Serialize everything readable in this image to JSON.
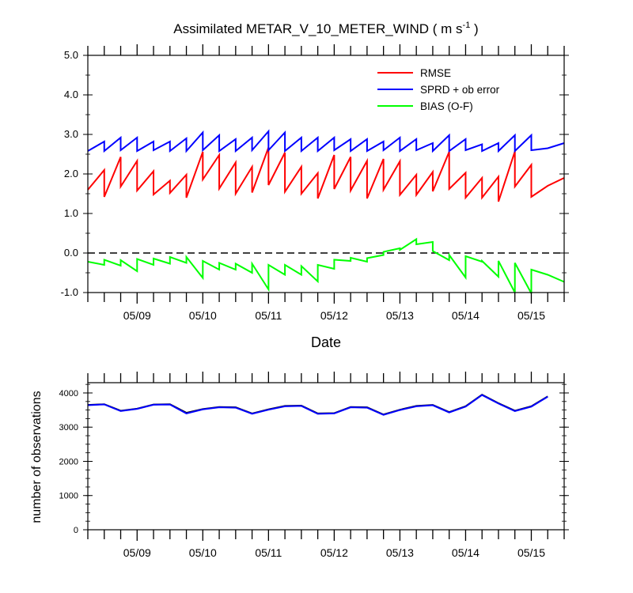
{
  "chart_data": [
    {
      "type": "line",
      "title": "Assimilated METAR_V_10_METER_WIND ( m s",
      "title_sup": "-1",
      "title_end": " )",
      "xlabel": "Date",
      "ylabel": "",
      "xlim": [
        0,
        7.25
      ],
      "ylim": [
        -1.0,
        5.0
      ],
      "yticks": [
        "-1.0",
        "0.0",
        "1.0",
        "2.0",
        "3.0",
        "4.0",
        "5.0"
      ],
      "ytick_values": [
        -1,
        0,
        1,
        2,
        3,
        4,
        5
      ],
      "x_tick_labels": [
        "05/09",
        "05/10",
        "05/11",
        "05/12",
        "05/13",
        "05/14",
        "05/15"
      ],
      "x_tick_values": [
        0.75,
        1.75,
        2.75,
        3.75,
        4.75,
        5.75,
        6.75
      ],
      "grid": false,
      "legend_position": "top-right",
      "reference_line": {
        "y": 0,
        "style": "dashed"
      },
      "series": [
        {
          "name": "RMSE",
          "color": "#ff0000",
          "points": [
            [
              0,
              1.6
            ],
            [
              0.25,
              2.1
            ],
            [
              0.25,
              1.42
            ],
            [
              0.5,
              2.43
            ],
            [
              0.5,
              1.68
            ],
            [
              0.75,
              2.33
            ],
            [
              0.75,
              1.58
            ],
            [
              1.0,
              2.07
            ],
            [
              1.0,
              1.48
            ],
            [
              1.25,
              1.83
            ],
            [
              1.25,
              1.52
            ],
            [
              1.5,
              1.98
            ],
            [
              1.5,
              1.4
            ],
            [
              1.75,
              2.56
            ],
            [
              1.75,
              1.86
            ],
            [
              2.0,
              2.48
            ],
            [
              2.0,
              1.63
            ],
            [
              2.25,
              2.29
            ],
            [
              2.25,
              1.5
            ],
            [
              2.5,
              2.18
            ],
            [
              2.5,
              1.53
            ],
            [
              2.75,
              2.67
            ],
            [
              2.75,
              1.72
            ],
            [
              3.0,
              2.54
            ],
            [
              3.0,
              1.55
            ],
            [
              3.25,
              2.18
            ],
            [
              3.25,
              1.5
            ],
            [
              3.5,
              2.02
            ],
            [
              3.5,
              1.38
            ],
            [
              3.75,
              2.48
            ],
            [
              3.75,
              1.62
            ],
            [
              4.0,
              2.43
            ],
            [
              4.0,
              1.58
            ],
            [
              4.25,
              2.33
            ],
            [
              4.25,
              1.38
            ],
            [
              4.5,
              2.38
            ],
            [
              4.5,
              1.6
            ],
            [
              4.75,
              2.32
            ],
            [
              4.75,
              1.47
            ],
            [
              5.0,
              1.98
            ],
            [
              5.0,
              1.47
            ],
            [
              5.25,
              2.05
            ],
            [
              5.25,
              1.56
            ],
            [
              5.5,
              2.56
            ],
            [
              5.5,
              1.62
            ],
            [
              5.75,
              2.03
            ],
            [
              5.75,
              1.4
            ],
            [
              6.0,
              1.9
            ],
            [
              6.0,
              1.4
            ],
            [
              6.25,
              1.93
            ],
            [
              6.25,
              1.3
            ],
            [
              6.5,
              2.57
            ],
            [
              6.5,
              1.68
            ],
            [
              6.75,
              2.23
            ],
            [
              6.75,
              1.42
            ],
            [
              7.0,
              1.7
            ],
            [
              7.25,
              1.9
            ]
          ]
        },
        {
          "name": "SPRD + ob error",
          "color": "#0000ff",
          "points": [
            [
              0,
              2.58
            ],
            [
              0.25,
              2.82
            ],
            [
              0.25,
              2.58
            ],
            [
              0.5,
              2.92
            ],
            [
              0.5,
              2.6
            ],
            [
              0.75,
              2.92
            ],
            [
              0.75,
              2.58
            ],
            [
              1.0,
              2.82
            ],
            [
              1.0,
              2.6
            ],
            [
              1.25,
              2.82
            ],
            [
              1.25,
              2.58
            ],
            [
              1.5,
              2.9
            ],
            [
              1.5,
              2.58
            ],
            [
              1.75,
              3.05
            ],
            [
              1.75,
              2.6
            ],
            [
              2.0,
              2.98
            ],
            [
              2.0,
              2.58
            ],
            [
              2.25,
              2.88
            ],
            [
              2.25,
              2.58
            ],
            [
              2.5,
              2.92
            ],
            [
              2.5,
              2.6
            ],
            [
              2.75,
              3.08
            ],
            [
              2.75,
              2.6
            ],
            [
              3.0,
              3.05
            ],
            [
              3.0,
              2.58
            ],
            [
              3.25,
              2.92
            ],
            [
              3.25,
              2.58
            ],
            [
              3.5,
              2.92
            ],
            [
              3.5,
              2.58
            ],
            [
              3.75,
              2.92
            ],
            [
              3.75,
              2.6
            ],
            [
              4.0,
              2.88
            ],
            [
              4.0,
              2.58
            ],
            [
              4.25,
              2.88
            ],
            [
              4.25,
              2.58
            ],
            [
              4.5,
              2.82
            ],
            [
              4.5,
              2.6
            ],
            [
              4.75,
              2.92
            ],
            [
              4.75,
              2.58
            ],
            [
              5.0,
              2.88
            ],
            [
              5.0,
              2.6
            ],
            [
              5.25,
              2.78
            ],
            [
              5.25,
              2.58
            ],
            [
              5.5,
              2.98
            ],
            [
              5.5,
              2.58
            ],
            [
              5.75,
              2.88
            ],
            [
              5.75,
              2.6
            ],
            [
              6.0,
              2.75
            ],
            [
              6.0,
              2.58
            ],
            [
              6.25,
              2.78
            ],
            [
              6.25,
              2.58
            ],
            [
              6.5,
              2.98
            ],
            [
              6.5,
              2.58
            ],
            [
              6.75,
              2.98
            ],
            [
              6.75,
              2.6
            ],
            [
              7.0,
              2.65
            ],
            [
              7.25,
              2.78
            ]
          ]
        },
        {
          "name": "BIAS (O-F)",
          "color": "#00ff00",
          "points": [
            [
              0,
              -0.22
            ],
            [
              0.25,
              -0.3
            ],
            [
              0.25,
              -0.17
            ],
            [
              0.5,
              -0.32
            ],
            [
              0.5,
              -0.18
            ],
            [
              0.75,
              -0.46
            ],
            [
              0.75,
              -0.15
            ],
            [
              1.0,
              -0.3
            ],
            [
              1.0,
              -0.14
            ],
            [
              1.25,
              -0.27
            ],
            [
              1.25,
              -0.1
            ],
            [
              1.5,
              -0.25
            ],
            [
              1.5,
              -0.1
            ],
            [
              1.75,
              -0.63
            ],
            [
              1.75,
              -0.2
            ],
            [
              2.0,
              -0.42
            ],
            [
              2.0,
              -0.25
            ],
            [
              2.25,
              -0.42
            ],
            [
              2.25,
              -0.27
            ],
            [
              2.5,
              -0.5
            ],
            [
              2.5,
              -0.27
            ],
            [
              2.75,
              -0.92
            ],
            [
              2.75,
              -0.3
            ],
            [
              3.0,
              -0.55
            ],
            [
              3.0,
              -0.3
            ],
            [
              3.25,
              -0.55
            ],
            [
              3.25,
              -0.33
            ],
            [
              3.5,
              -0.72
            ],
            [
              3.5,
              -0.3
            ],
            [
              3.75,
              -0.4
            ],
            [
              3.75,
              -0.17
            ],
            [
              4.0,
              -0.2
            ],
            [
              4.0,
              -0.12
            ],
            [
              4.25,
              -0.22
            ],
            [
              4.25,
              -0.13
            ],
            [
              4.5,
              -0.05
            ],
            [
              4.5,
              0.03
            ],
            [
              4.75,
              0.12
            ],
            [
              4.75,
              0.08
            ],
            [
              5.0,
              0.35
            ],
            [
              5.0,
              0.22
            ],
            [
              5.25,
              0.28
            ],
            [
              5.25,
              0.05
            ],
            [
              5.5,
              -0.18
            ],
            [
              5.5,
              -0.05
            ],
            [
              5.75,
              -0.62
            ],
            [
              5.75,
              -0.08
            ],
            [
              6.0,
              -0.22
            ],
            [
              6.0,
              -0.2
            ],
            [
              6.25,
              -0.6
            ],
            [
              6.25,
              -0.2
            ],
            [
              6.5,
              -1.0
            ],
            [
              6.5,
              -0.25
            ],
            [
              6.75,
              -1.02
            ],
            [
              6.75,
              -0.42
            ],
            [
              7.0,
              -0.55
            ],
            [
              7.25,
              -0.73
            ]
          ]
        }
      ]
    },
    {
      "type": "line",
      "title": "",
      "xlabel": "",
      "ylabel": "number of observations",
      "xlim": [
        0,
        7.25
      ],
      "ylim": [
        0,
        4300
      ],
      "yticks": [
        "0",
        "1000",
        "2000",
        "3000",
        "4000"
      ],
      "ytick_values": [
        0,
        1000,
        2000,
        3000,
        4000
      ],
      "x_tick_labels": [
        "05/09",
        "05/10",
        "05/11",
        "05/12",
        "05/13",
        "05/14",
        "05/15"
      ],
      "x_tick_values": [
        0.75,
        1.75,
        2.75,
        3.75,
        4.75,
        5.75,
        6.75
      ],
      "grid": false,
      "series": [
        {
          "color": "#000000",
          "points": [
            [
              0,
              3650
            ],
            [
              0.25,
              3670
            ],
            [
              0.5,
              3480
            ],
            [
              0.75,
              3540
            ],
            [
              1.0,
              3660
            ],
            [
              1.25,
              3670
            ],
            [
              1.5,
              3420
            ],
            [
              1.75,
              3530
            ],
            [
              2.0,
              3590
            ],
            [
              2.25,
              3580
            ],
            [
              2.5,
              3400
            ],
            [
              2.75,
              3520
            ],
            [
              3.0,
              3620
            ],
            [
              3.25,
              3630
            ],
            [
              3.5,
              3400
            ],
            [
              3.75,
              3410
            ],
            [
              4.0,
              3590
            ],
            [
              4.25,
              3580
            ],
            [
              4.5,
              3370
            ],
            [
              4.75,
              3510
            ],
            [
              5.0,
              3620
            ],
            [
              5.25,
              3650
            ],
            [
              5.5,
              3440
            ],
            [
              5.75,
              3610
            ],
            [
              6.0,
              3950
            ],
            [
              6.25,
              3700
            ],
            [
              6.5,
              3480
            ],
            [
              6.75,
              3610
            ],
            [
              7.0,
              3900
            ]
          ]
        },
        {
          "color": "#0000ff",
          "points": [
            [
              0,
              3640
            ],
            [
              0.25,
              3665
            ],
            [
              0.5,
              3470
            ],
            [
              0.75,
              3535
            ],
            [
              1.0,
              3655
            ],
            [
              1.25,
              3660
            ],
            [
              1.5,
              3400
            ],
            [
              1.75,
              3520
            ],
            [
              2.0,
              3580
            ],
            [
              2.25,
              3570
            ],
            [
              2.5,
              3390
            ],
            [
              2.75,
              3510
            ],
            [
              3.0,
              3610
            ],
            [
              3.25,
              3620
            ],
            [
              3.5,
              3390
            ],
            [
              3.75,
              3400
            ],
            [
              4.0,
              3580
            ],
            [
              4.25,
              3570
            ],
            [
              4.5,
              3360
            ],
            [
              4.75,
              3500
            ],
            [
              5.0,
              3610
            ],
            [
              5.25,
              3640
            ],
            [
              5.5,
              3430
            ],
            [
              5.75,
              3600
            ],
            [
              6.0,
              3940
            ],
            [
              6.25,
              3690
            ],
            [
              6.5,
              3470
            ],
            [
              6.75,
              3600
            ],
            [
              7.0,
              3890
            ]
          ]
        }
      ]
    }
  ]
}
